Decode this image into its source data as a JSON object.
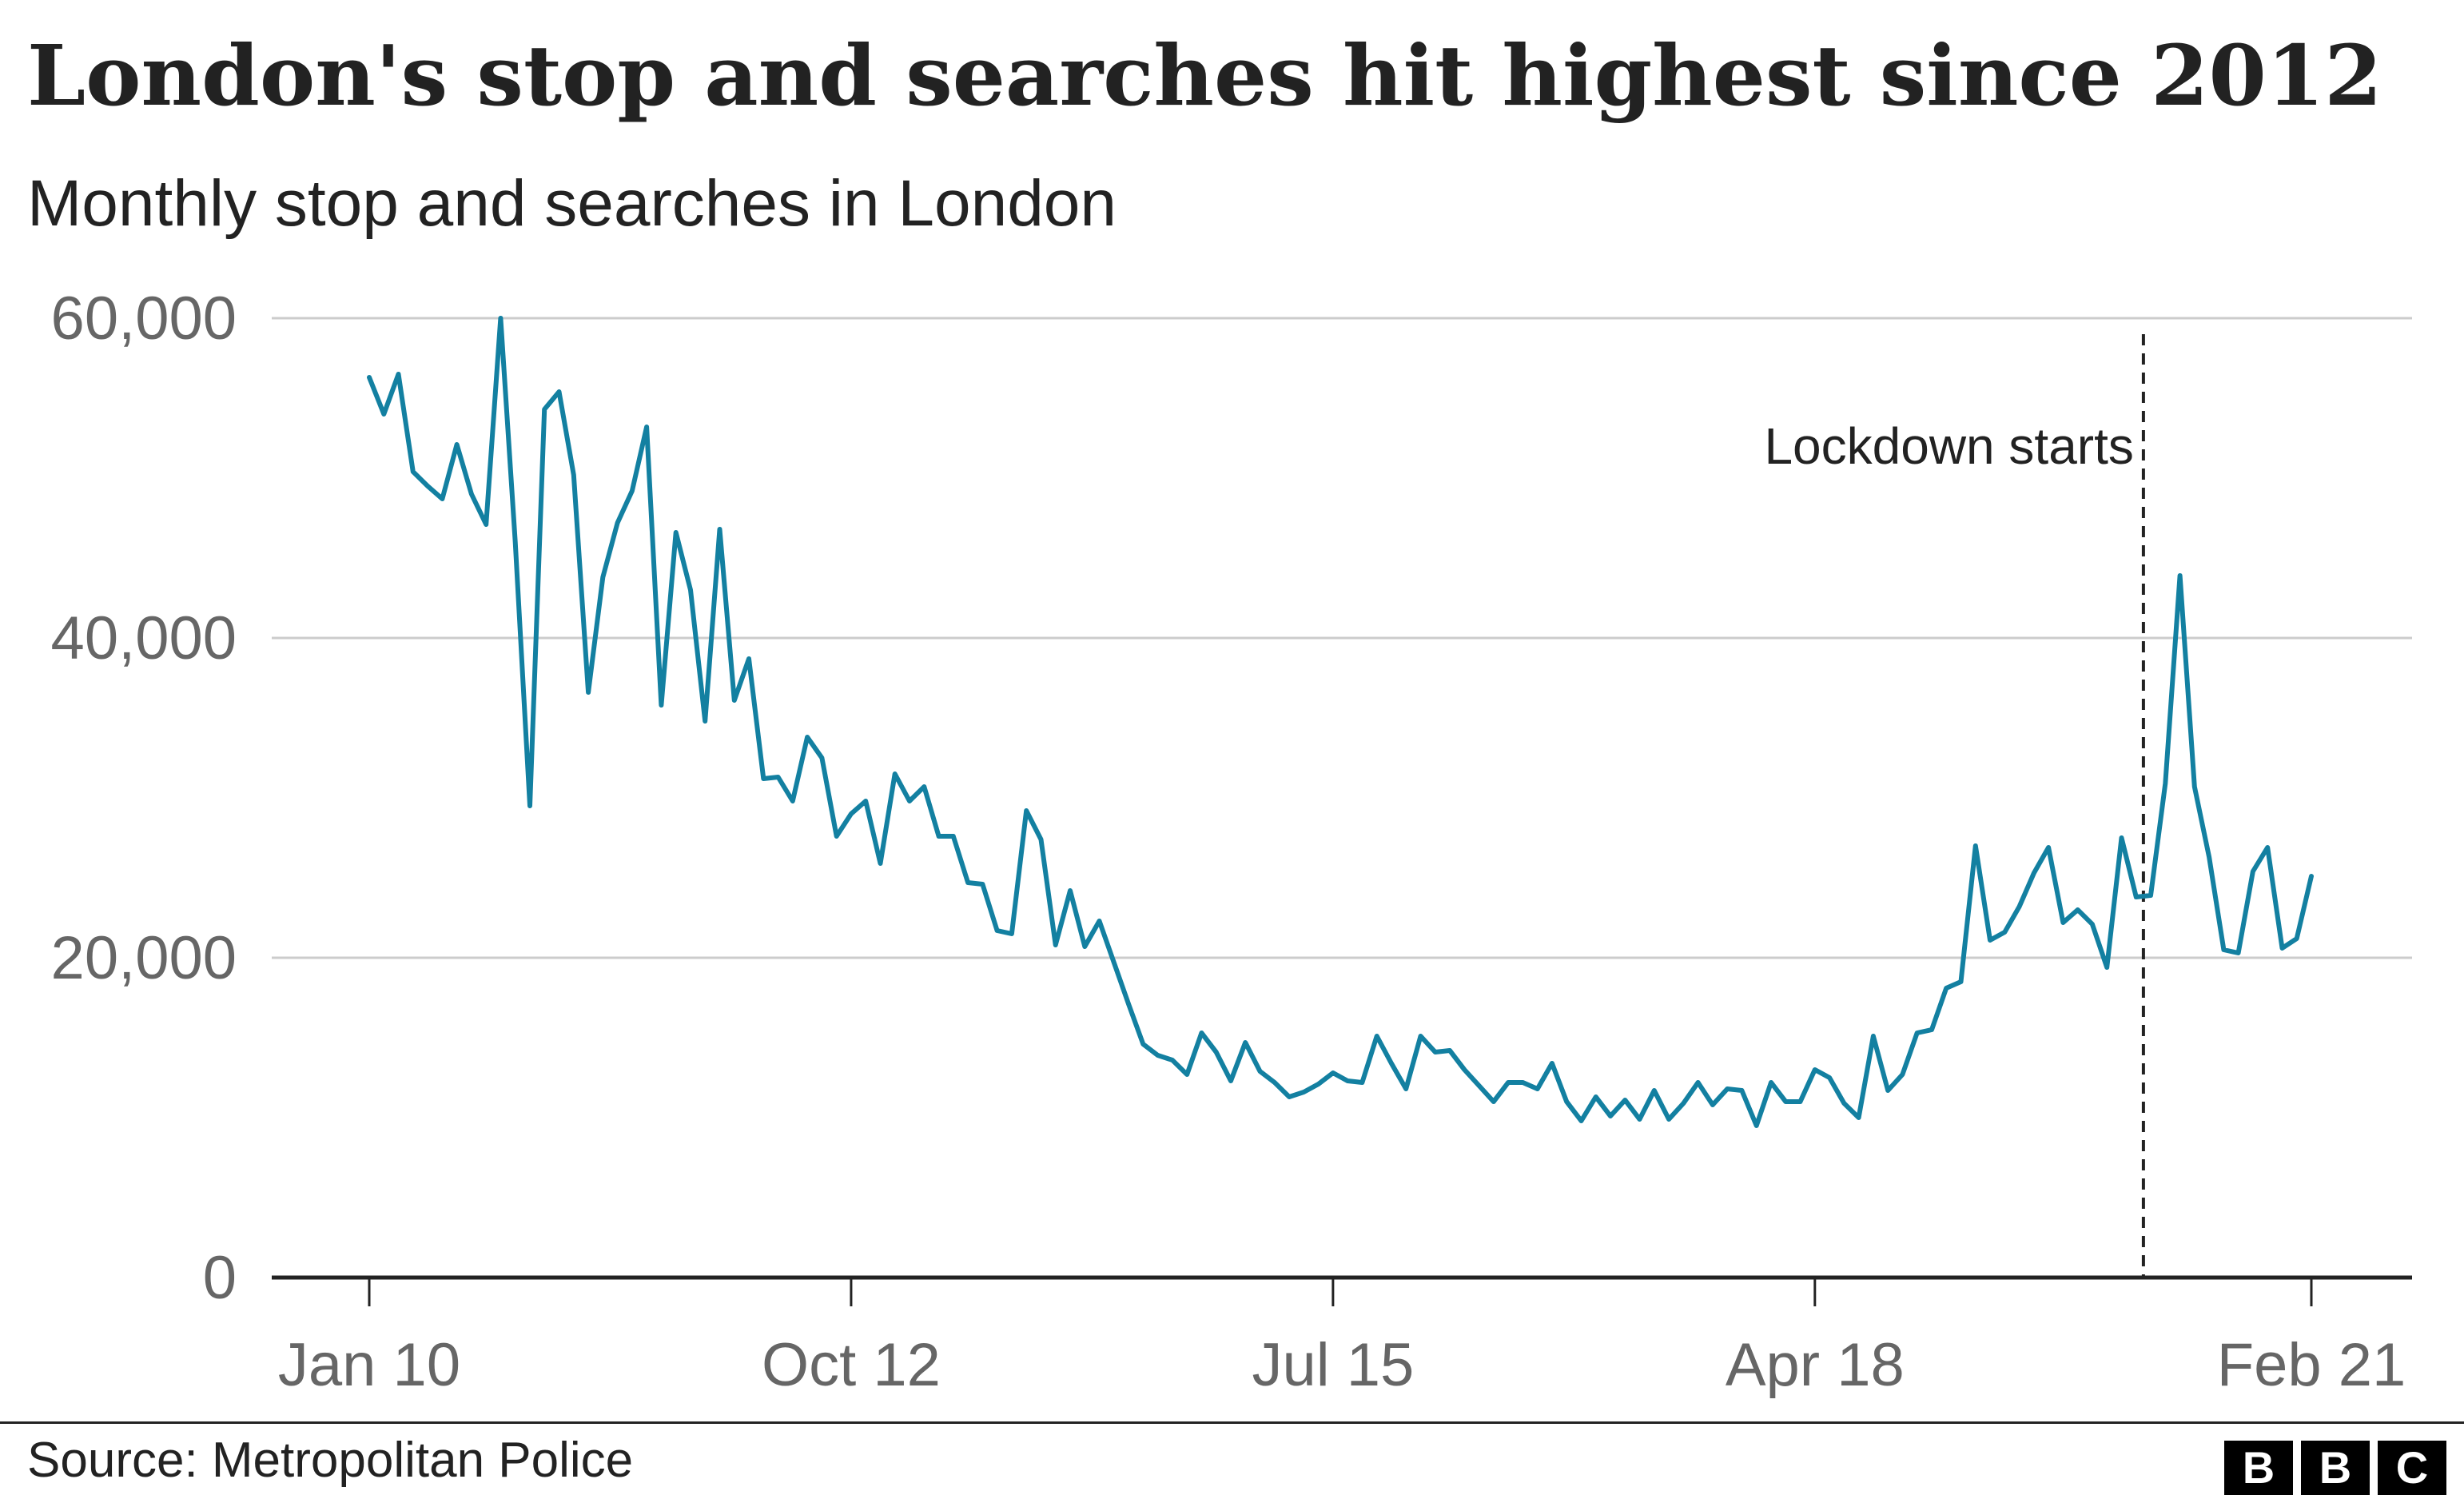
{
  "title": "London's stop and searches hit highest since 2012",
  "subtitle": "Monthly stop and searches in London",
  "source": "Source: Metropolitan Police",
  "logo": {
    "letters": [
      "B",
      "B",
      "C"
    ],
    "icon": "bbc-logo"
  },
  "colors": {
    "line": "#1380A1",
    "grid": "#cccccc",
    "axis": "#222222",
    "tick_text": "#666666"
  },
  "chart_data": {
    "type": "line",
    "title": "London's stop and searches hit highest since 2012",
    "subtitle": "Monthly stop and searches in London",
    "xlabel": "",
    "ylabel": "",
    "ylim": [
      0,
      60000
    ],
    "yticks": [
      0,
      20000,
      40000,
      60000
    ],
    "ytick_labels": [
      "0",
      "20,000",
      "40,000",
      "60,000"
    ],
    "xticks": [
      {
        "index": 0,
        "label": "Jan 10"
      },
      {
        "index": 33,
        "label": "Oct 12"
      },
      {
        "index": 66,
        "label": "Jul 15"
      },
      {
        "index": 99,
        "label": "Apr 18"
      },
      {
        "index": 133,
        "label": "Feb 21"
      }
    ],
    "grid": true,
    "annotation": {
      "label": "Lockdown starts",
      "at_index": 121.5,
      "style": "dashed"
    },
    "series": [
      {
        "name": "Monthly stop and searches",
        "start": "Jan 10",
        "end": "Feb 21",
        "values": [
          56300,
          54000,
          56500,
          50400,
          49500,
          48700,
          52100,
          49000,
          47100,
          60000,
          46000,
          29500,
          54300,
          55400,
          50200,
          36600,
          43800,
          47200,
          49200,
          53200,
          35800,
          46600,
          43000,
          34800,
          46800,
          36100,
          38700,
          31200,
          31300,
          29800,
          33800,
          32500,
          27600,
          29000,
          29800,
          25900,
          31500,
          29800,
          30700,
          27600,
          27600,
          24700,
          24600,
          21700,
          21500,
          29200,
          27400,
          20800,
          24200,
          20700,
          22300,
          19700,
          17100,
          14600,
          13900,
          13600,
          12700,
          15300,
          14100,
          12300,
          14700,
          12900,
          12200,
          11300,
          11600,
          12100,
          12800,
          12300,
          12200,
          15100,
          13400,
          11800,
          15100,
          14100,
          14200,
          13000,
          12000,
          11000,
          12200,
          12200,
          11800,
          13400,
          11000,
          9800,
          11300,
          10100,
          11100,
          9900,
          11700,
          9900,
          10900,
          12200,
          10800,
          11800,
          11700,
          9500,
          12200,
          11000,
          11000,
          13000,
          12500,
          10900,
          10000,
          15100,
          11700,
          12700,
          15300,
          15500,
          18100,
          18500,
          27000,
          21100,
          21600,
          23200,
          25300,
          26900,
          22200,
          23000,
          22100,
          19400,
          27500,
          23800,
          23900,
          30900,
          43900,
          30700,
          26300,
          20500,
          20300,
          25400,
          26900,
          20600,
          21200,
          25100
        ]
      }
    ]
  }
}
